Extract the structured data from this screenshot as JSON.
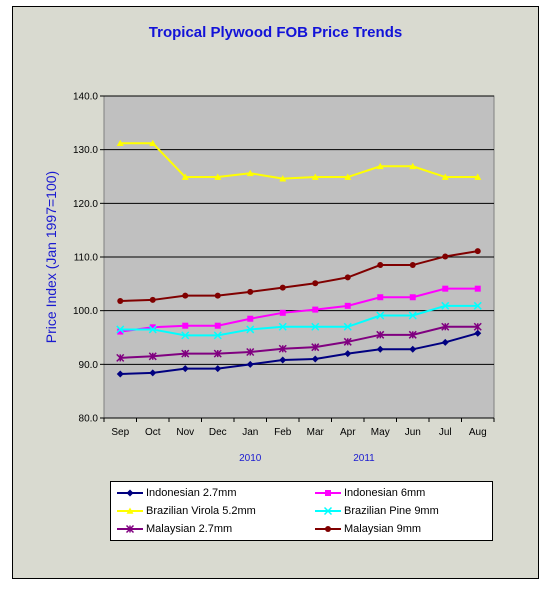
{
  "chart_data": {
    "type": "line",
    "title": "Tropical Plywood FOB Price Trends",
    "ylabel": "Price Index (Jan 1997=100)",
    "xlabel": "",
    "categories": [
      "Sep",
      "Oct",
      "Nov",
      "Dec",
      "Jan",
      "Feb",
      "Mar",
      "Apr",
      "May",
      "Jun",
      "Jul",
      "Aug"
    ],
    "year_labels": [
      {
        "text": "2010",
        "category_index": 4
      },
      {
        "text": "2011",
        "category_index": 7.5
      }
    ],
    "ylim": [
      80,
      140
    ],
    "yticks": [
      "80.0",
      "90.0",
      "100.0",
      "110.0",
      "120.0",
      "130.0",
      "140.0"
    ],
    "ytick_values": [
      80,
      90,
      100,
      110,
      120,
      130,
      140
    ],
    "grid": true,
    "legend_position": "bottom",
    "series": [
      {
        "name": "Indonesian 2.7mm",
        "color": "#000080",
        "marker": "diamond",
        "values": [
          88.2,
          88.4,
          89.2,
          89.2,
          90.0,
          90.8,
          91.0,
          92.0,
          92.8,
          92.8,
          94.1,
          95.8
        ]
      },
      {
        "name": "Indonesian 6mm",
        "color": "#ff00ff",
        "marker": "square",
        "values": [
          96.1,
          96.9,
          97.2,
          97.2,
          98.5,
          99.6,
          100.2,
          100.9,
          102.5,
          102.5,
          104.1,
          104.1
        ]
      },
      {
        "name": "Brazilian Virola 5.2mm",
        "color": "#ffff00",
        "marker": "triangle",
        "values": [
          131.2,
          131.2,
          124.9,
          124.9,
          125.6,
          124.6,
          124.9,
          124.9,
          126.9,
          126.9,
          124.9,
          124.9
        ]
      },
      {
        "name": "Brazilian Pine 9mm",
        "color": "#00ffff",
        "marker": "x",
        "values": [
          96.5,
          96.5,
          95.4,
          95.4,
          96.5,
          97.0,
          97.0,
          97.0,
          99.1,
          99.1,
          100.9,
          100.9
        ]
      },
      {
        "name": "Malaysian 2.7mm",
        "color": "#800080",
        "marker": "star",
        "values": [
          91.2,
          91.5,
          92.0,
          92.0,
          92.3,
          92.9,
          93.2,
          94.2,
          95.5,
          95.5,
          97.0,
          97.0
        ]
      },
      {
        "name": "Malaysian 9mm",
        "color": "#800000",
        "marker": "circle",
        "values": [
          101.8,
          102.0,
          102.8,
          102.8,
          103.5,
          104.3,
          105.1,
          106.2,
          108.5,
          108.5,
          110.1,
          111.1
        ]
      }
    ]
  }
}
